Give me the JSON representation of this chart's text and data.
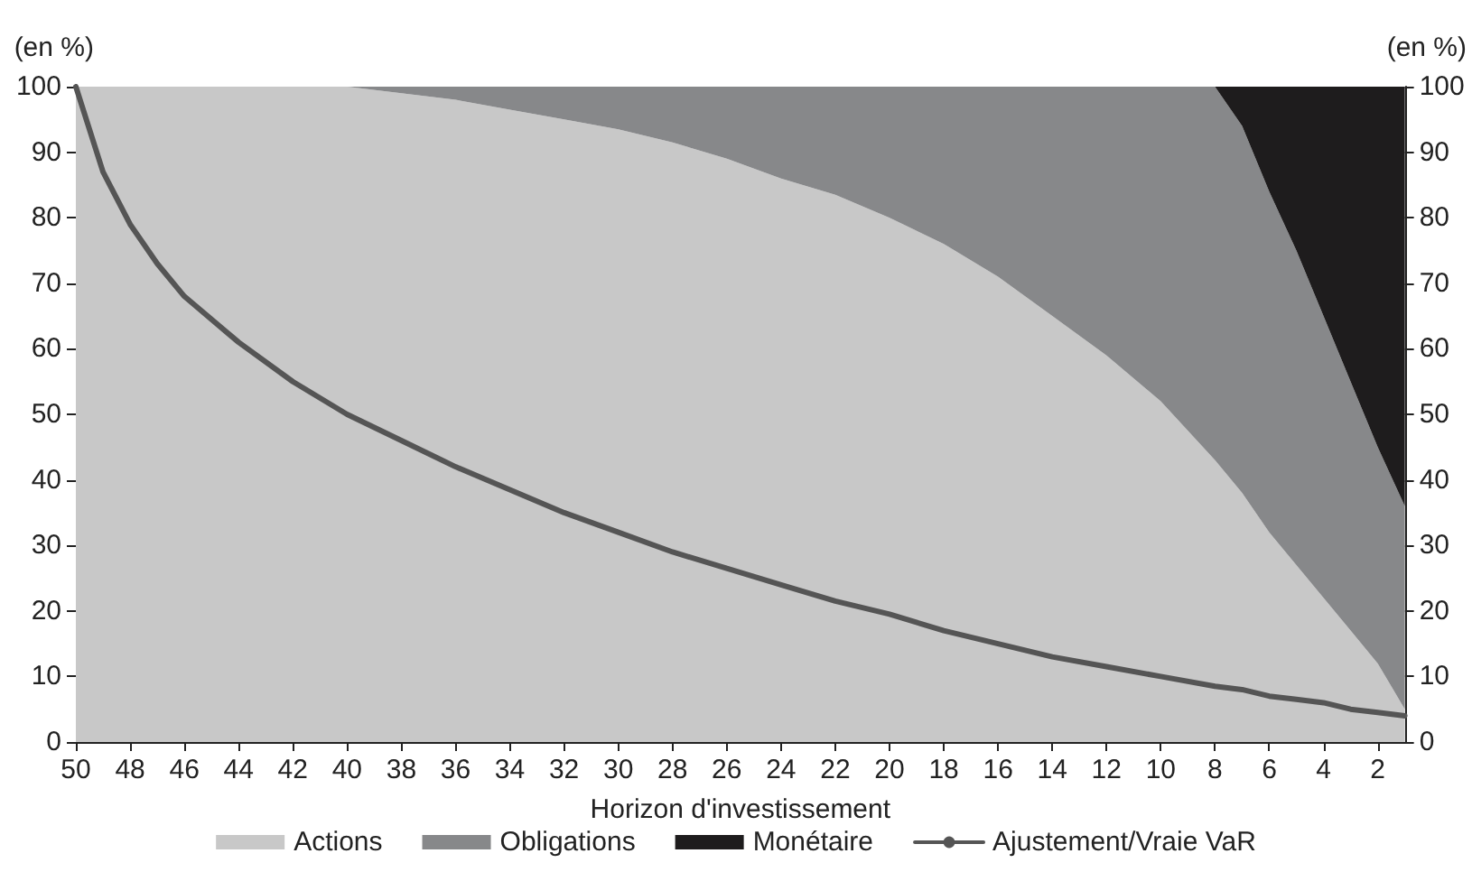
{
  "chart_data": {
    "type": "area",
    "xlabel": "Horizon d'investissement",
    "ylabel": "(en %)",
    "y2label": "(en %)",
    "x": [
      50,
      49,
      48,
      47,
      46,
      44,
      42,
      40,
      38,
      36,
      34,
      32,
      30,
      28,
      26,
      24,
      22,
      20,
      18,
      16,
      14,
      12,
      10,
      8,
      7,
      6,
      5,
      4,
      3,
      2,
      1
    ],
    "series": [
      {
        "name": "Actions",
        "color": "#c8c8c8",
        "values": [
          100,
          100,
          100,
          100,
          100,
          100,
          100,
          100,
          99,
          98,
          96.5,
          95,
          93.5,
          91.5,
          89,
          86,
          83.5,
          80,
          76,
          71,
          65,
          59,
          52,
          43,
          38,
          32,
          27,
          22,
          17,
          12,
          5
        ]
      },
      {
        "name": "Obligations",
        "color": "#87888a",
        "values": [
          0,
          0,
          0,
          0,
          0,
          0,
          0,
          0,
          1,
          2,
          3.5,
          5,
          6.5,
          8.5,
          11,
          14,
          16.5,
          20,
          24,
          29,
          35,
          41,
          48,
          57,
          56,
          52,
          48,
          43,
          38,
          33,
          31
        ]
      },
      {
        "name": "Monétaire",
        "color": "#1e1c1d",
        "values": [
          0,
          0,
          0,
          0,
          0,
          0,
          0,
          0,
          0,
          0,
          0,
          0,
          0,
          0,
          0,
          0,
          0,
          0,
          0,
          0,
          0,
          0,
          0,
          0,
          6,
          16,
          25,
          35,
          45,
          55,
          64
        ]
      },
      {
        "name": "Ajustement/Vraie VaR",
        "type": "line",
        "color": "#555555",
        "values": [
          100,
          87,
          79,
          73,
          68,
          61,
          55,
          50,
          46,
          42,
          38.5,
          35,
          32,
          29,
          26.5,
          24,
          21.5,
          19.5,
          17,
          15,
          13,
          11.5,
          10,
          8.5,
          8,
          7,
          6.5,
          6,
          5,
          4.5,
          4
        ]
      }
    ],
    "stacked": true,
    "marker": "none",
    "legend": "bottom",
    "grid": false,
    "xlim": [
      50,
      1
    ],
    "xticks": [
      50,
      48,
      46,
      44,
      42,
      40,
      38,
      36,
      34,
      32,
      30,
      28,
      26,
      24,
      22,
      20,
      18,
      16,
      14,
      12,
      10,
      8,
      6,
      4,
      2
    ],
    "ylim": [
      0,
      100
    ],
    "yticks": [
      0,
      10,
      20,
      30,
      40,
      50,
      60,
      70,
      80,
      90,
      100
    ],
    "y2lim": [
      0,
      100
    ],
    "y2ticks": [
      0,
      10,
      20,
      30,
      40,
      50,
      60,
      70,
      80,
      90,
      100
    ]
  }
}
